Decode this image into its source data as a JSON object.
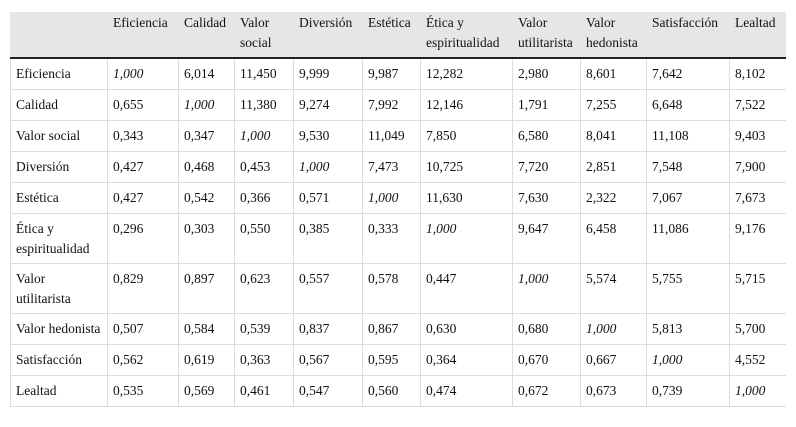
{
  "table": {
    "columns": [
      "Eficiencia",
      "Calidad",
      "Valor social",
      "Diversión",
      "Estética",
      "Ética y espiritualidad",
      "Valor utilitarista",
      "Valor hedonista",
      "Satisfacción",
      "Lealtad"
    ],
    "rows": [
      {
        "label": "Eficiencia",
        "cells": [
          "1,000",
          "6,014",
          "11,450",
          "9,999",
          "9,987",
          "12,282",
          "2,980",
          "8,601",
          "7,642",
          "8,102"
        ]
      },
      {
        "label": "Calidad",
        "cells": [
          "0,655",
          "1,000",
          "11,380",
          "9,274",
          "7,992",
          "12,146",
          "1,791",
          "7,255",
          "6,648",
          "7,522"
        ]
      },
      {
        "label": "Valor social",
        "cells": [
          "0,343",
          "0,347",
          "1,000",
          "9,530",
          "11,049",
          "7,850",
          "6,580",
          "8,041",
          "11,108",
          "9,403"
        ]
      },
      {
        "label": "Diversión",
        "cells": [
          "0,427",
          "0,468",
          "0,453",
          "1,000",
          "7,473",
          "10,725",
          "7,720",
          "2,851",
          "7,548",
          "7,900"
        ]
      },
      {
        "label": "Estética",
        "cells": [
          "0,427",
          "0,542",
          "0,366",
          "0,571",
          "1,000",
          "11,630",
          "7,630",
          "2,322",
          "7,067",
          "7,673"
        ]
      },
      {
        "label": "Ética y espiritualidad",
        "cells": [
          "0,296",
          "0,303",
          "0,550",
          "0,385",
          "0,333",
          "1,000",
          "9,647",
          "6,458",
          "11,086",
          "9,176"
        ]
      },
      {
        "label": "Valor utilitarista",
        "cells": [
          "0,829",
          "0,897",
          "0,623",
          "0,557",
          "0,578",
          "0,447",
          "1,000",
          "5,574",
          "5,755",
          "5,715"
        ]
      },
      {
        "label": "Valor hedonista",
        "cells": [
          "0,507",
          "0,584",
          "0,539",
          "0,837",
          "0,867",
          "0,630",
          "0,680",
          "1,000",
          "5,813",
          "5,700"
        ]
      },
      {
        "label": "Satisfacción",
        "cells": [
          "0,562",
          "0,619",
          "0,363",
          "0,567",
          "0,595",
          "0,364",
          "0,670",
          "0,667",
          "1,000",
          "4,552"
        ]
      },
      {
        "label": "Lealtad",
        "cells": [
          "0,535",
          "0,569",
          "0,461",
          "0,547",
          "0,560",
          "0,474",
          "0,672",
          "0,673",
          "0,739",
          "1,000"
        ]
      }
    ]
  }
}
